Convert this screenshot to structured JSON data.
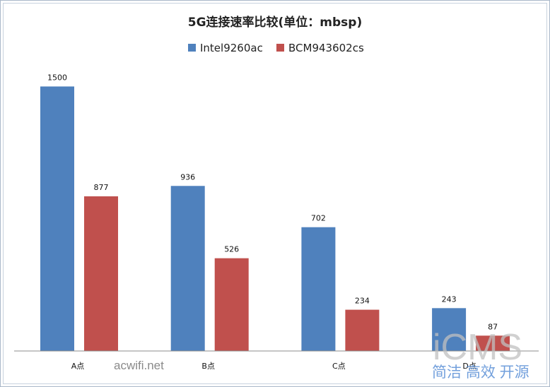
{
  "chart_data": {
    "type": "bar",
    "title": "5G连接速率比较(单位：mbsp)",
    "categories": [
      "A点",
      "B点",
      "C点",
      "D点"
    ],
    "series": [
      {
        "name": "Intel9260ac",
        "values": [
          1500,
          936,
          702,
          243
        ],
        "color": "#4f81bd"
      },
      {
        "name": "BCM943602cs",
        "values": [
          877,
          526,
          234,
          87
        ],
        "color": "#c0504d"
      }
    ],
    "ylim": [
      0,
      1600
    ],
    "legend_position": "top",
    "grid": false
  },
  "watermarks": {
    "site": "acwifi.net",
    "brand": "iCMS",
    "slogan": "简洁 高效 开源"
  }
}
